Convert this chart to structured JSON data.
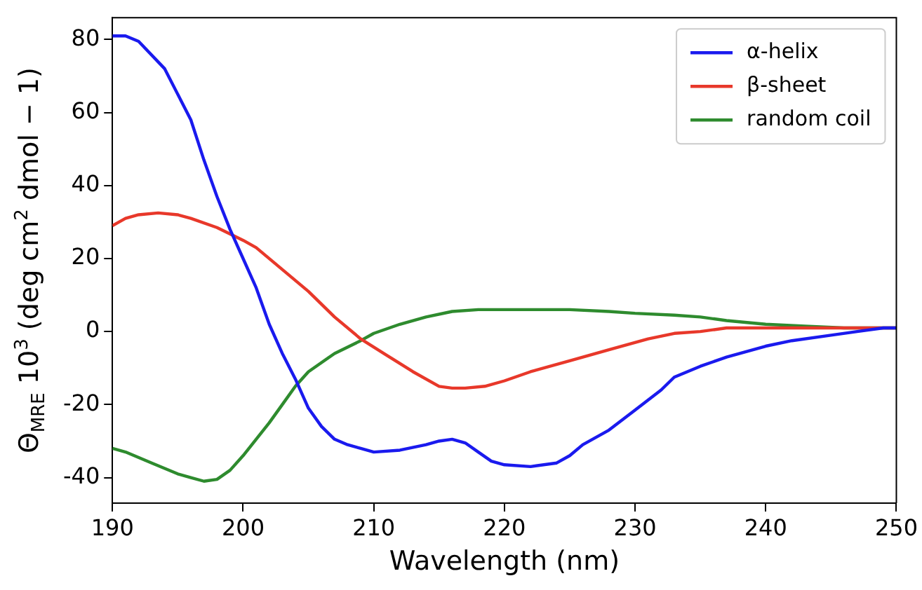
{
  "chart_data": {
    "type": "line",
    "xlabel": "Wavelength (nm)",
    "ylabel": "Θ$_{MRE}$ 10$^{3}$ (deg cm$^{2}$ dmol − 1)",
    "xlim": [
      190,
      250
    ],
    "xticks": [
      190,
      200,
      210,
      220,
      230,
      240,
      250
    ],
    "ylim": [
      -47,
      86
    ],
    "yticks": [
      -40,
      -20,
      0,
      20,
      40,
      60,
      80
    ],
    "grid": false,
    "legend": "top right",
    "marker": "none",
    "line_style": "solid",
    "series": [
      {
        "name": "α-helix",
        "color": "#1a1aee",
        "x": [
          190,
          191,
          192,
          194,
          196,
          197,
          198,
          199,
          200,
          201,
          202,
          203,
          204,
          205,
          206,
          207,
          208,
          209,
          210,
          212,
          214,
          215,
          216,
          217,
          218,
          219,
          220,
          222,
          224,
          225,
          226,
          228,
          230,
          232,
          233,
          235,
          237,
          240,
          242,
          245,
          247,
          249,
          250
        ],
        "values": [
          81,
          81,
          79.5,
          72,
          58,
          47,
          37,
          28,
          20,
          12,
          2,
          -6,
          -13,
          -21,
          -26,
          -29.5,
          -31,
          -32,
          -33,
          -32.5,
          -31,
          -30,
          -29.5,
          -30.5,
          -33,
          -35.5,
          -36.5,
          -37,
          -36,
          -34,
          -31,
          -27,
          -21.5,
          -16,
          -12.5,
          -9.5,
          -7,
          -4,
          -2.5,
          -1,
          0,
          1,
          1
        ]
      },
      {
        "name": "β-sheet",
        "color": "#e8382a",
        "x": [
          190,
          191,
          192,
          193.5,
          195,
          196,
          198,
          200,
          201,
          203,
          205,
          207,
          209,
          211,
          213,
          215,
          216,
          217,
          218.5,
          220,
          222,
          225,
          228,
          231,
          233,
          235,
          237,
          240,
          245,
          250
        ],
        "values": [
          29,
          31,
          32,
          32.5,
          32,
          31,
          28.5,
          25,
          23,
          17,
          11,
          4,
          -2,
          -6.5,
          -11,
          -15,
          -15.5,
          -15.5,
          -15,
          -13.5,
          -11,
          -8,
          -5,
          -2,
          -0.5,
          0,
          1,
          1,
          1,
          1
        ]
      },
      {
        "name": "random coil",
        "color": "#2e8b2e",
        "x": [
          190,
          191,
          193,
          195,
          196,
          197,
          198,
          199,
          200,
          201,
          202,
          203,
          204,
          205,
          207,
          209,
          210,
          212,
          214,
          216,
          218,
          220,
          222,
          225,
          228,
          230,
          233,
          235,
          237,
          240,
          243,
          246,
          250
        ],
        "values": [
          -32,
          -33,
          -36,
          -39,
          -40,
          -41,
          -40.5,
          -38,
          -34,
          -29.5,
          -25,
          -20,
          -15,
          -11,
          -6,
          -2.5,
          -0.5,
          2,
          4,
          5.5,
          6,
          6,
          6,
          6,
          5.5,
          5,
          4.5,
          4,
          3,
          2,
          1.5,
          1,
          1
        ]
      }
    ]
  }
}
